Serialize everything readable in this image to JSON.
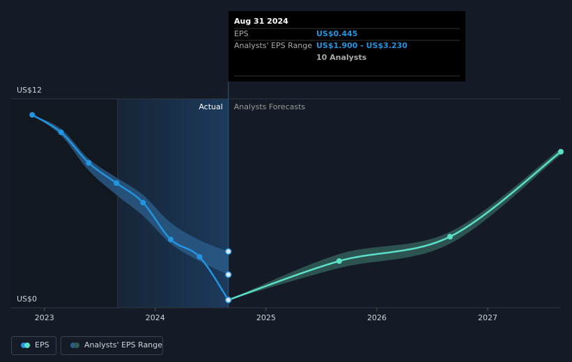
{
  "chart_data": {
    "type": "line",
    "xlim": [
      2022.7,
      2027.66
    ],
    "ylim": [
      0,
      12
    ],
    "xticks": [
      2023,
      2024,
      2025,
      2026,
      2027
    ],
    "yticks": [
      {
        "value": 0,
        "label": "US$0"
      },
      {
        "value": 12,
        "label": "US$12"
      }
    ],
    "grid": true,
    "divider_x": 2024.66,
    "actual_label": "Actual",
    "forecast_label": "Analysts Forecasts",
    "series": [
      {
        "name": "EPS",
        "color": "#2394df",
        "forecast_color": "#5ce0c8",
        "x": [
          2022.89,
          2023.15,
          2023.4,
          2023.65,
          2023.89,
          2024.14,
          2024.4,
          2024.66,
          2025.66,
          2026.66,
          2027.66
        ],
        "values": [
          11.08,
          10.08,
          8.32,
          7.16,
          6.04,
          3.92,
          2.92,
          0.445,
          2.68,
          4.08,
          8.96
        ]
      },
      {
        "name": "Analysts' EPS Range",
        "color": "#2a5d8a",
        "forecast_color": "#2f5a55",
        "x": [
          2022.89,
          2023.15,
          2023.4,
          2023.65,
          2023.89,
          2024.14,
          2024.4,
          2024.66,
          2025.66,
          2026.66,
          2027.66
        ],
        "low": [
          11.08,
          9.9,
          7.88,
          6.48,
          5.28,
          3.68,
          2.68,
          1.9,
          2.28,
          3.68,
          8.8
        ],
        "high": [
          11.08,
          10.28,
          8.56,
          7.48,
          6.48,
          4.88,
          3.88,
          3.23,
          3.08,
          4.36,
          9.16
        ]
      }
    ],
    "legend": "bottom-left",
    "tooltip": {
      "date": "Aug 31 2024",
      "eps_label": "EPS",
      "eps_value": "US$0.445",
      "range_label": "Analysts' EPS Range",
      "range_value": "US$1.900 - US$3.230",
      "analysts": "10 Analysts"
    }
  }
}
